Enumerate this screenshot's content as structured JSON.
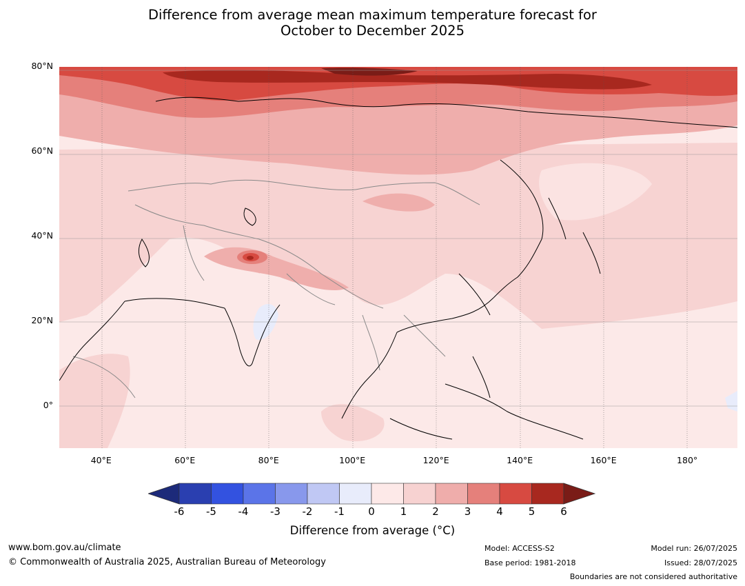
{
  "title_line1": "Difference from average mean maximum temperature forecast for",
  "title_line2": "October to December 2025",
  "map": {
    "lat_labels": [
      {
        "text": "80°N",
        "lat": 80
      },
      {
        "text": "60°N",
        "lat": 60
      },
      {
        "text": "40°N",
        "lat": 40
      },
      {
        "text": "20°N",
        "lat": 20
      },
      {
        "text": "0°",
        "lat": 0
      }
    ],
    "lon_labels": [
      {
        "text": "40°E",
        "lon": 40
      },
      {
        "text": "60°E",
        "lon": 60
      },
      {
        "text": "80°E",
        "lon": 80
      },
      {
        "text": "100°E",
        "lon": 100
      },
      {
        "text": "120°E",
        "lon": 120
      },
      {
        "text": "140°E",
        "lon": 140
      },
      {
        "text": "160°E",
        "lon": 160
      },
      {
        "text": "180°",
        "lon": 180
      }
    ],
    "lat_range": [
      -10,
      80
    ],
    "lon_range": [
      30,
      192
    ]
  },
  "colorbar": {
    "ticks": [
      "-6",
      "-5",
      "-4",
      "-3",
      "-2",
      "-1",
      "0",
      "1",
      "2",
      "3",
      "4",
      "5",
      "6"
    ],
    "colors": [
      "#1c2a7a",
      "#2a3fb0",
      "#3352e0",
      "#5b74e8",
      "#8898ec",
      "#c0c8f4",
      "#e8ecfb",
      "#fde9e8",
      "#f7d2d1",
      "#efadab",
      "#e5807b",
      "#d74a41",
      "#a8281f",
      "#7a1c17"
    ],
    "label": "Difference from average (°C)"
  },
  "footer": {
    "url": "www.bom.gov.au/climate",
    "copyright": "© Commonwealth of Australia 2025, Australian Bureau of Meteorology",
    "model": "Model: ACCESS-S2",
    "base_period": "Base period: 1981-2018",
    "model_run": "Model run: 26/07/2025",
    "issued": "Issued: 28/07/2025",
    "disclaimer": "Boundaries are not considered authoritative"
  }
}
